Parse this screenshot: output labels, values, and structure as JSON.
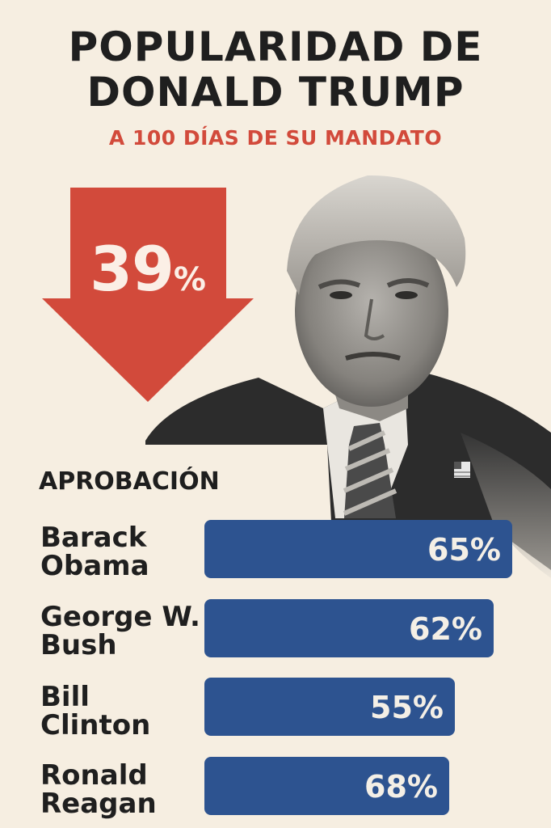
{
  "title_line1": "POPULARIDAD DE",
  "title_line2": "DONALD TRUMP",
  "subtitle": "A 100 DÍAS DE SU MANDATO",
  "headline_value": "39",
  "headline_unit": "%",
  "colors": {
    "background": "#f6eee1",
    "accent_red": "#d24a3b",
    "bar_blue": "#2d5390",
    "title": "#1f1f1f"
  },
  "icons": [
    "down-arrow-icon",
    "american-flag-pin-icon"
  ],
  "chart_data": {
    "type": "bar",
    "orientation": "horizontal",
    "title": "APROBACIÓN",
    "categories": [
      [
        "Barack",
        "Obama"
      ],
      [
        "George W.",
        "Bush"
      ],
      [
        "Bill",
        "Clinton"
      ],
      [
        "Ronald",
        "Reagan"
      ]
    ],
    "values": [
      65,
      62,
      55,
      68
    ],
    "value_labels": [
      "65%",
      "62%",
      "55%",
      "68%"
    ],
    "unit": "%"
  }
}
